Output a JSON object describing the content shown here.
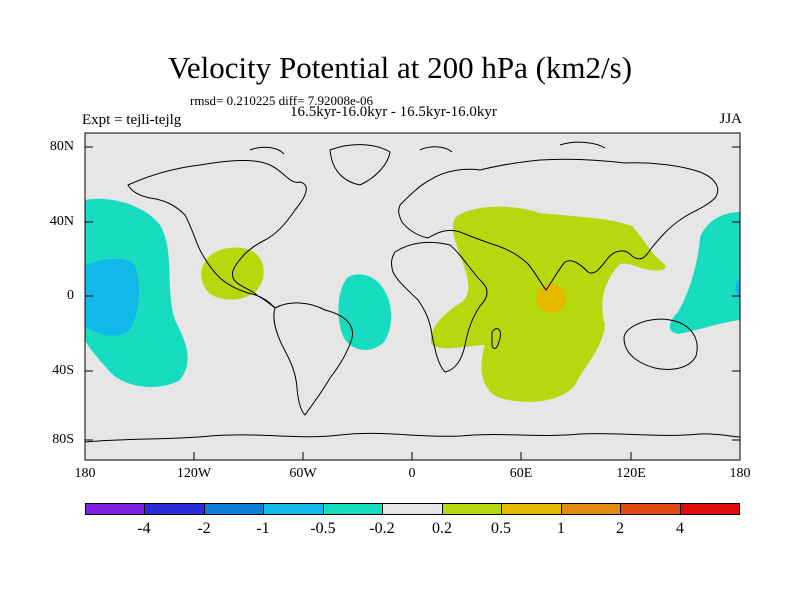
{
  "title": "Velocity Potential at 200 hPa (km2/s)",
  "stats": "rmsd= 0.210225 diff= 7.92008e-06",
  "period": "16.5kyr-16.0kyr - 16.5kyr-16.0kyr",
  "experiment": "Expt = tejli-tejlg",
  "season": "JJA",
  "lat_labels": [
    "80N",
    "40N",
    "0",
    "40S",
    "80S"
  ],
  "lon_labels": [
    "180",
    "120W",
    "60W",
    "0",
    "60E",
    "120E",
    "180"
  ],
  "colorbar": {
    "colors": [
      "#7f1fe3",
      "#2a2ed8",
      "#0f7fd9",
      "#12b8e8",
      "#18dcc0",
      "#e6e6e6",
      "#b6d80e",
      "#e6b800",
      "#e38a12",
      "#e04a10",
      "#e00d0d"
    ],
    "labels": [
      "-4",
      "-2",
      "-1",
      "-0.5",
      "-0.2",
      "0.2",
      "0.5",
      "1",
      "2",
      "4"
    ]
  },
  "colors": {
    "background": "#e6e6e6",
    "neg_light": "#18dcc0",
    "neg_mid": "#12b8e8",
    "pos_light": "#b6d80e",
    "pos_mid": "#e6b800"
  }
}
